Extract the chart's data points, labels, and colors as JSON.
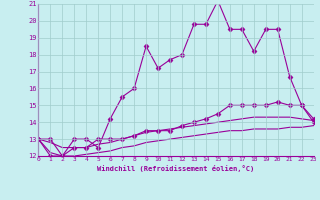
{
  "xlabel": "Windchill (Refroidissement éolien,°C)",
  "background_color": "#c8eef0",
  "grid_color": "#a0cccc",
  "line_color": "#990099",
  "x": [
    0,
    1,
    2,
    3,
    4,
    5,
    6,
    7,
    8,
    9,
    10,
    11,
    12,
    13,
    14,
    15,
    16,
    17,
    18,
    19,
    20,
    21,
    22,
    23
  ],
  "series1": [
    13.0,
    13.0,
    12.0,
    13.0,
    13.0,
    12.5,
    14.2,
    15.5,
    16.0,
    18.5,
    17.2,
    17.7,
    18.0,
    19.8,
    19.8,
    21.2,
    19.5,
    19.5,
    18.2,
    19.5,
    19.5,
    16.7,
    15.0,
    14.0
  ],
  "series2": [
    13.0,
    12.0,
    12.0,
    12.5,
    12.5,
    13.0,
    13.0,
    13.0,
    13.2,
    13.5,
    13.5,
    13.5,
    13.8,
    14.0,
    14.2,
    14.5,
    15.0,
    15.0,
    15.0,
    15.0,
    15.2,
    15.0,
    15.0,
    14.2
  ],
  "series3": [
    13.0,
    12.8,
    12.5,
    12.5,
    12.5,
    12.7,
    12.8,
    13.0,
    13.2,
    13.4,
    13.5,
    13.6,
    13.7,
    13.8,
    13.9,
    14.0,
    14.1,
    14.2,
    14.3,
    14.3,
    14.3,
    14.3,
    14.2,
    14.1
  ],
  "series4": [
    13.0,
    12.2,
    12.0,
    12.0,
    12.1,
    12.2,
    12.3,
    12.5,
    12.6,
    12.8,
    12.9,
    13.0,
    13.1,
    13.2,
    13.3,
    13.4,
    13.5,
    13.5,
    13.6,
    13.6,
    13.6,
    13.7,
    13.7,
    13.8
  ],
  "ylim": [
    12,
    21
  ],
  "xlim": [
    0,
    23
  ],
  "yticks": [
    12,
    13,
    14,
    15,
    16,
    17,
    18,
    19,
    20,
    21
  ],
  "xticks": [
    0,
    1,
    2,
    3,
    4,
    5,
    6,
    7,
    8,
    9,
    10,
    11,
    12,
    13,
    14,
    15,
    16,
    17,
    18,
    19,
    20,
    21,
    22,
    23
  ]
}
